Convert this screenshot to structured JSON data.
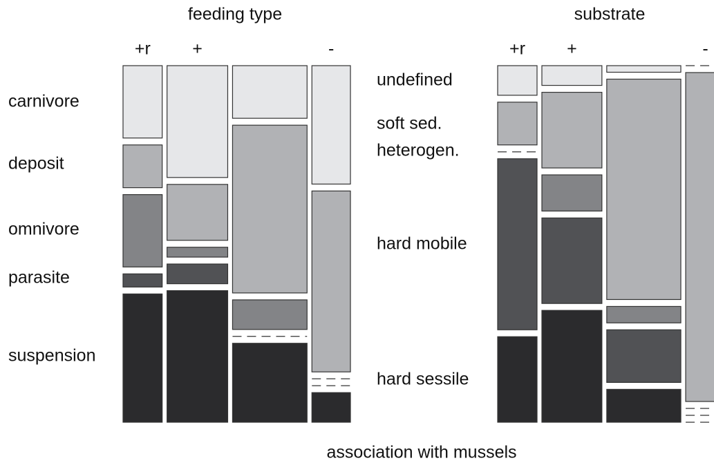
{
  "chart_data": [
    {
      "type": "mosaic",
      "title": "feeding type",
      "categories": [
        "+r",
        "+",
        null,
        "-"
      ],
      "column_share": [
        18.4,
        28.5,
        35.0,
        18.1
      ],
      "series": [
        {
          "name": "carnivore",
          "color": "#e6e7e9",
          "values": [
            22,
            34,
            16,
            36
          ]
        },
        {
          "name": "deposit",
          "color": "#b1b2b5",
          "values": [
            13,
            17,
            51,
            55
          ]
        },
        {
          "name": "omnivore",
          "color": "#838487",
          "values": [
            22,
            3,
            9,
            0
          ]
        },
        {
          "name": "parasite",
          "color": "#515255",
          "values": [
            4,
            6,
            0,
            0
          ]
        },
        {
          "name": "suspension",
          "color": "#2b2b2d",
          "values": [
            39,
            40,
            24,
            9
          ]
        }
      ]
    },
    {
      "type": "mosaic",
      "title": "substrate",
      "categories": [
        "+r",
        "+",
        null,
        "-"
      ],
      "column_share": [
        18.5,
        28.2,
        34.8,
        18.5
      ],
      "series": [
        {
          "name": "undefined",
          "color": "#e6e7e9",
          "values": [
            9,
            6,
            2,
            0
          ]
        },
        {
          "name": "soft sed.",
          "color": "#b1b2b5",
          "values": [
            13,
            23,
            67,
            100
          ]
        },
        {
          "name": "heterogen.",
          "color": "#838487",
          "values": [
            0,
            11,
            5,
            0
          ]
        },
        {
          "name": "hard mobile",
          "color": "#515255",
          "values": [
            52,
            26,
            16,
            0
          ]
        },
        {
          "name": "hard sessile",
          "color": "#2b2b2d",
          "values": [
            26,
            34,
            10,
            0
          ]
        }
      ]
    }
  ],
  "xlabel": "association with mussels"
}
